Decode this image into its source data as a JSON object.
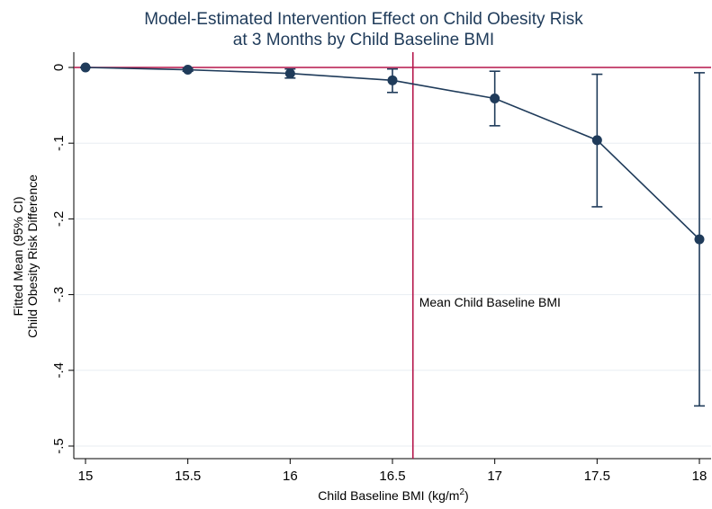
{
  "chart_data": {
    "type": "line",
    "title": [
      "Model-Estimated Intervention Effect on Child Obesity Risk",
      "at 3 Months by Child Baseline BMI"
    ],
    "xlabel": "Child Baseline BMI (kg/m",
    "xlabel_superscript": "2",
    "xlabel_suffix": ")",
    "ylabel": [
      "Fitted Mean (95% CI)",
      "Child Obesity Risk Difference"
    ],
    "xlim": [
      15,
      18
    ],
    "ylim": [
      -0.5,
      0
    ],
    "x_ticks": [
      {
        "value": 15,
        "label": "15"
      },
      {
        "value": 15.5,
        "label": "15.5"
      },
      {
        "value": 16,
        "label": "16"
      },
      {
        "value": 16.5,
        "label": "16.5"
      },
      {
        "value": 17,
        "label": "17"
      },
      {
        "value": 17.5,
        "label": "17.5"
      },
      {
        "value": 18,
        "label": "18"
      }
    ],
    "y_ticks": [
      {
        "value": 0,
        "label": "0"
      },
      {
        "value": -0.1,
        "label": "-.1"
      },
      {
        "value": -0.2,
        "label": "-.2"
      },
      {
        "value": -0.3,
        "label": "-.3"
      },
      {
        "value": -0.4,
        "label": "-.4"
      },
      {
        "value": -0.5,
        "label": "-.5"
      }
    ],
    "grid": true,
    "series": [
      {
        "points": [
          {
            "x": 15,
            "y": 0.0,
            "lo": 0.0,
            "hi": 0.0
          },
          {
            "x": 15.5,
            "y": -0.003,
            "lo": -0.005,
            "hi": -0.001
          },
          {
            "x": 16,
            "y": -0.008,
            "lo": -0.014,
            "hi": -0.002
          },
          {
            "x": 16.5,
            "y": -0.017,
            "lo": -0.033,
            "hi": -0.002
          },
          {
            "x": 17,
            "y": -0.041,
            "lo": -0.077,
            "hi": -0.005
          },
          {
            "x": 17.5,
            "y": -0.096,
            "lo": -0.184,
            "hi": -0.009
          },
          {
            "x": 18,
            "y": -0.227,
            "lo": -0.447,
            "hi": -0.007
          }
        ],
        "color": "#1f3b5a"
      }
    ],
    "reference_lines": {
      "horizontal": {
        "y": 0,
        "color": "#b5164b"
      },
      "vertical": {
        "x": 16.6,
        "color": "#b5164b",
        "label": "Mean Child Baseline BMI"
      }
    },
    "colors": {
      "grid": "#e8eef2",
      "axis": "#000000",
      "title": "#1f3b5a"
    }
  }
}
